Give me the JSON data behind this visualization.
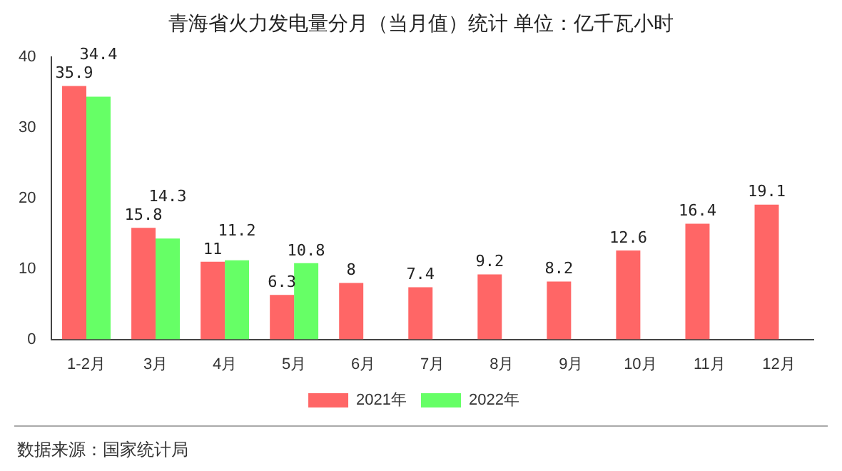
{
  "chart_data": {
    "type": "bar",
    "title": "青海省火力发电量分月（当月值）统计  单位：亿千瓦小时",
    "categories": [
      "1-2月",
      "3月",
      "4月",
      "5月",
      "6月",
      "7月",
      "8月",
      "9月",
      "10月",
      "11月",
      "12月"
    ],
    "series": [
      {
        "name": "2021年",
        "color": "#ff6666",
        "values": [
          35.9,
          15.8,
          11,
          6.3,
          8,
          7.4,
          9.2,
          8.2,
          12.6,
          16.4,
          19.1
        ]
      },
      {
        "name": "2022年",
        "color": "#66ff66",
        "values": [
          34.4,
          14.3,
          11.2,
          10.8,
          null,
          null,
          null,
          null,
          null,
          null,
          null
        ]
      }
    ],
    "ylim": [
      0,
      40
    ],
    "yticks": [
      0,
      10,
      20,
      30,
      40
    ],
    "grid": false,
    "legend": "bottom",
    "data_labels": true,
    "annotations": [
      "数据来源：国家统计局"
    ]
  }
}
